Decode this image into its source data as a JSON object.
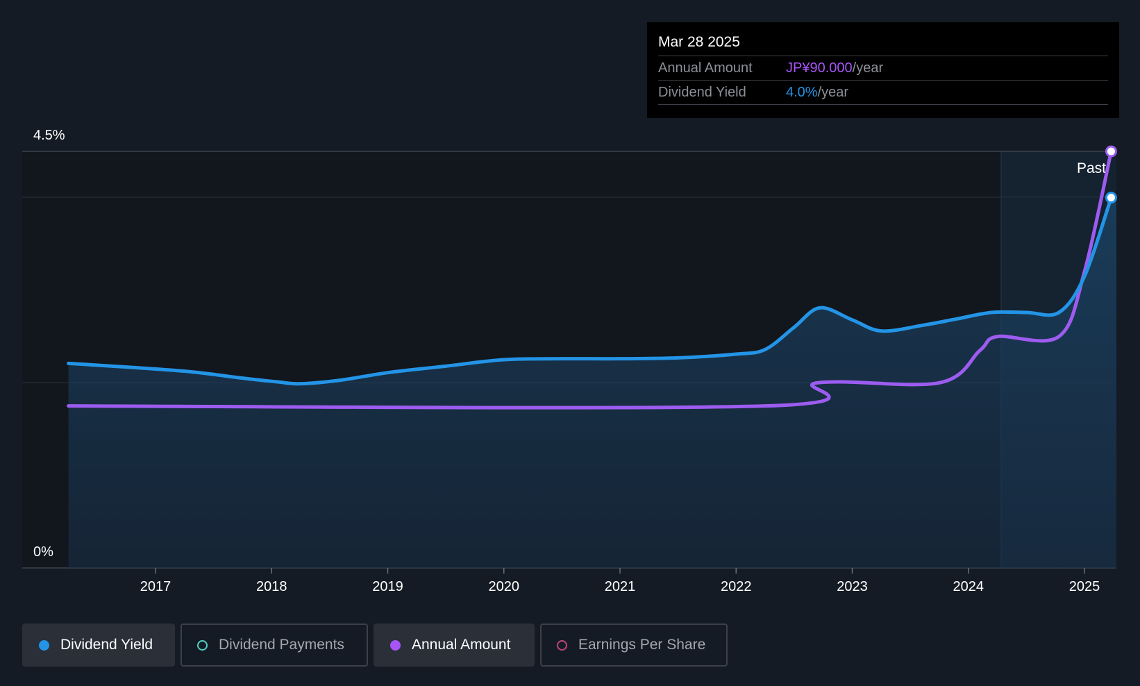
{
  "tooltip": {
    "date": "Mar 28 2025",
    "annual_label": "Annual Amount",
    "annual_value": "JP¥90.000",
    "annual_unit": "/year",
    "yield_label": "Dividend Yield",
    "yield_value": "4.0%",
    "yield_unit": "/year"
  },
  "legend": [
    {
      "label": "Dividend Yield",
      "color": "#2394e6",
      "active": true
    },
    {
      "label": "Dividend Payments",
      "color": "#4fd1c5",
      "active": false
    },
    {
      "label": "Annual Amount",
      "color": "#a855f7",
      "active": true
    },
    {
      "label": "Earnings Per Share",
      "color": "#c0467a",
      "active": false
    }
  ],
  "colors": {
    "background": "#151b24",
    "dividend_yield": "#2394e6",
    "annual_amount": "#9d5cf0",
    "past_label": "#ffffff"
  },
  "chart_data": {
    "type": "line",
    "y_tick_labels": [
      "4.5%",
      "0%"
    ],
    "ylim": [
      0,
      4.5
    ],
    "x_tick_labels": [
      "2017",
      "2018",
      "2019",
      "2020",
      "2021",
      "2022",
      "2023",
      "2024",
      "2025"
    ],
    "xlim": [
      2016.38,
      2025.35
    ],
    "past_label": "Past",
    "past_start": 2024.25,
    "series": [
      {
        "name": "Dividend Yield",
        "unit": "%",
        "points": [
          [
            2016.25,
            2.21
          ],
          [
            2016.75,
            2.17
          ],
          [
            2017.3,
            2.12
          ],
          [
            2017.75,
            2.05
          ],
          [
            2018.05,
            2.01
          ],
          [
            2018.25,
            1.99
          ],
          [
            2018.6,
            2.03
          ],
          [
            2019.0,
            2.11
          ],
          [
            2019.5,
            2.18
          ],
          [
            2020.0,
            2.25
          ],
          [
            2020.5,
            2.26
          ],
          [
            2021.0,
            2.26
          ],
          [
            2021.5,
            2.27
          ],
          [
            2022.0,
            2.31
          ],
          [
            2022.25,
            2.36
          ],
          [
            2022.5,
            2.6
          ],
          [
            2022.72,
            2.81
          ],
          [
            2023.0,
            2.68
          ],
          [
            2023.25,
            2.56
          ],
          [
            2023.6,
            2.62
          ],
          [
            2023.9,
            2.69
          ],
          [
            2024.2,
            2.76
          ],
          [
            2024.5,
            2.76
          ],
          [
            2024.78,
            2.76
          ],
          [
            2025.0,
            3.15
          ],
          [
            2025.23,
            4.0
          ]
        ]
      },
      {
        "name": "Annual Amount",
        "unit": "JP¥",
        "points": [
          [
            2016.25,
            1.75
          ],
          [
            2022.25,
            1.75
          ],
          [
            2022.7,
            2.0
          ],
          [
            2023.75,
            2.0
          ],
          [
            2024.1,
            2.35
          ],
          [
            2024.25,
            2.5
          ],
          [
            2024.78,
            2.5
          ],
          [
            2025.0,
            3.2
          ],
          [
            2025.23,
            4.5
          ]
        ]
      }
    ]
  }
}
